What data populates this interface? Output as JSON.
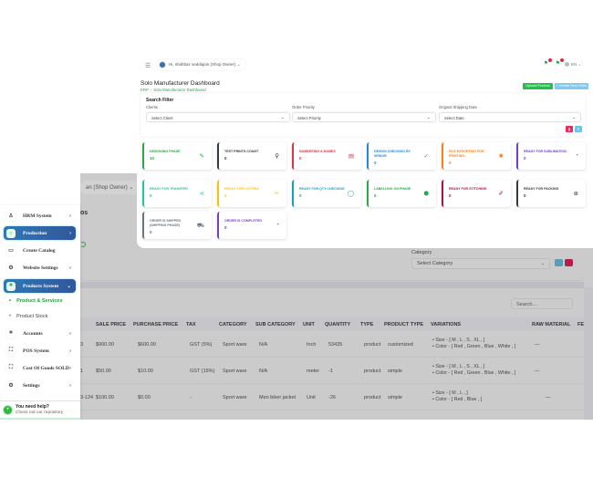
{
  "background_page": {
    "user_fragment": "an (Shop Owner) ⌄",
    "title_fragment": "os",
    "category": {
      "label": "Category",
      "placeholder": "Select Category"
    },
    "search_placeholder": "Search...",
    "table": {
      "columns": [
        "SALE PRICE",
        "PURCHASE PRICE",
        "TAX",
        "CATEGORY",
        "SUB CATEGORY",
        "UNIT",
        "QUANTITY",
        "TYPE",
        "PRODUCT TYPE",
        "VARIATIONS",
        "RAW MATERIAL",
        "FE"
      ],
      "rows": [
        {
          "sku_fragment": "3",
          "sale_price": "$900.00",
          "purchase_price": "$600.00",
          "tax": "GST (5%)",
          "category": "Sport ware",
          "sub_category": "N/A",
          "unit": "Inch",
          "quantity": "53435",
          "type": "product",
          "product_type": "customized",
          "variations": [
            "Size - [ M , L , S , XL , ]",
            "Color - [ Red , Green , Blue , White , ]"
          ],
          "raw_material": "—"
        },
        {
          "sku_fragment": "1",
          "sale_price": "$50.00",
          "purchase_price": "$10.00",
          "tax": "GST (15%)",
          "category": "Sport ware",
          "sub_category": "N/A",
          "unit": "meter",
          "quantity": "-1",
          "type": "product",
          "product_type": "simple",
          "variations": [
            "Size - [ M , L , S , XL , ]",
            "Color - [ Red , Green , Blue , White , ]"
          ],
          "raw_material": "—"
        },
        {
          "sku_fragment": "3-124",
          "sale_price": "$100.00",
          "purchase_price": "$0.00",
          "tax": "-",
          "category": "Sport ware",
          "sub_category": "Men biker jacket",
          "unit": "Unit",
          "quantity": "-26",
          "type": "product",
          "product_type": "simple",
          "variations": [
            "Size - [ M , L , ]",
            "Color - [ Red , Blue , ]"
          ],
          "raw_material": "—"
        }
      ]
    }
  },
  "sidebar": {
    "items": [
      {
        "label": "HRM System",
        "icon": "user-icon",
        "arrow": "›",
        "active": false
      },
      {
        "label": "Production",
        "icon": "circle-icon",
        "arrow": "›",
        "active": true
      },
      {
        "label": "Create Catalog",
        "icon": "catalog-icon",
        "arrow": "",
        "active": false
      },
      {
        "label": "Website Settings",
        "icon": "gear-icon",
        "arrow": "›",
        "active": false
      },
      {
        "label": "Products System",
        "icon": "products-icon",
        "arrow": "⌄",
        "active": true
      }
    ],
    "sub_items": [
      {
        "label": "Product & Services",
        "active": true
      },
      {
        "label": "Product Stock",
        "active": false
      }
    ],
    "items_bottom": [
      {
        "label": "Accounts",
        "icon": "accounts-icon",
        "arrow": "›"
      },
      {
        "label": "POS System",
        "icon": "pos-icon",
        "arrow": "›"
      },
      {
        "label": "Cost Of Goods SOLD",
        "icon": "cost-icon",
        "arrow": "›"
      },
      {
        "label": "Settings",
        "icon": "settings-icon",
        "arrow": "›"
      }
    ],
    "help": {
      "title": "You need help?",
      "subtitle": "Check out our repository"
    }
  },
  "dashboard": {
    "topbar": {
      "user_label": "Hi, shahbaz seddiqian (Shop Owner) ⌄",
      "language": "EN ⌄"
    },
    "title": "Solo Manufacturer Dashboard",
    "breadcrumb": {
      "root": "ERP",
      "sep": "›",
      "current": "Solo Manufacturer Dashboard"
    },
    "buttons": {
      "upload": "Upload Product",
      "create": "+ Create New Order"
    },
    "filter": {
      "title": "Search Filter",
      "fields": [
        {
          "label": "Clients",
          "placeholder": "Select Client"
        },
        {
          "label": "Order Priority",
          "placeholder": "Select Priority"
        },
        {
          "label": "Original Shipping Date",
          "placeholder": "Select Date"
        }
      ]
    },
    "stats": [
      {
        "label": "DESIGNING PHASE",
        "value": "10",
        "color": "#27a844",
        "icon": "✎"
      },
      {
        "label": "TEST PRINTS COUNT",
        "value": "0",
        "color": "#343a40",
        "icon": "⚲"
      },
      {
        "label": "NUMBERING & NAMES",
        "value": "0",
        "color": "#dc3545",
        "icon": "▤"
      },
      {
        "label": "DESIGN CHECKING BY SENIOR",
        "value": "0",
        "color": "#1e88e5",
        "icon": "✓"
      },
      {
        "label": "FILE EXPORTING FOR PRINTING",
        "value": "0",
        "color": "#fd7e14",
        "icon": "✺"
      },
      {
        "label": "READY FOR SUBLIMATION",
        "value": "0",
        "color": "#6f42c1",
        "icon": "◔"
      },
      {
        "label": "READY FOR TRANSFER",
        "value": "0",
        "color": "#20c997",
        "icon": "⋖"
      },
      {
        "label": "READY FOR CUTTING",
        "value": "0",
        "color": "#ffc107",
        "icon": "✂"
      },
      {
        "label": "READY FOR QTY CHECKING",
        "value": "0",
        "color": "#17a2b8",
        "icon": "◯"
      },
      {
        "label": "LABELLING ON PHASE",
        "value": "0",
        "color": "#28a745",
        "icon": "⬢"
      },
      {
        "label": "READY FOR STITCHING",
        "value": "0",
        "color": "#a4123f",
        "icon": "✐"
      },
      {
        "label": "READY FOR PACKING",
        "value": "0",
        "color": "#343a40",
        "icon": "⊕"
      },
      {
        "label": "ORDER IS SHIPPED (SHIPPING PHASE)",
        "value": "0",
        "color": "#6c757d",
        "icon": "⛟"
      },
      {
        "label": "ORDER IS COMPLETED",
        "value": "0",
        "color": "#6f42c1",
        "icon": "◔"
      }
    ]
  },
  "colors": {
    "accent_green": "#27a844",
    "sidebar_active": "#2e79b8",
    "danger": "#ee2a5a",
    "info": "#6cc3ee"
  }
}
